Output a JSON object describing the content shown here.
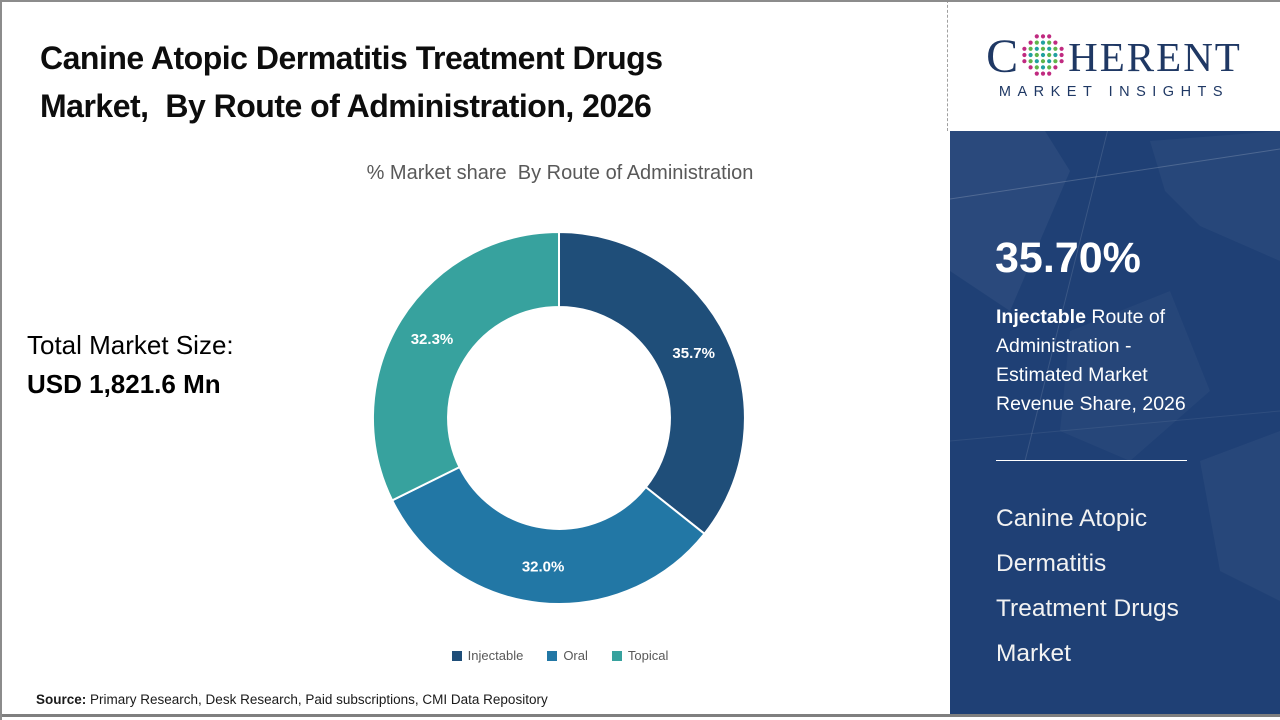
{
  "header": {
    "title_line1": "Canine Atopic Dermatitis Treatment Drugs",
    "title_line2": "Market,  By Route of Administration, 2026",
    "subtitle": "% Market share  By Route of Administration"
  },
  "chart_data": {
    "type": "pie",
    "donut": true,
    "title": "% Market share  By Route of Administration",
    "categories": [
      "Injectable",
      "Oral",
      "Topical"
    ],
    "values": [
      35.7,
      32.0,
      32.3
    ],
    "labels": [
      "35.7%",
      "32.0%",
      "32.3%"
    ],
    "colors": [
      "#1f4e79",
      "#2277a5",
      "#37a29e"
    ],
    "start_angle_deg": 0,
    "direction": "clockwise",
    "inner_radius_ratio": 0.6,
    "legend_position": "bottom",
    "label_color": "#ffffff"
  },
  "left_panel": {
    "total_label": "Total Market Size:",
    "total_value": "USD 1,821.6 Mn",
    "source_label": "Source:",
    "source_text": "Primary Research, Desk Research, Paid subscriptions, CMI Data Repository"
  },
  "sidebar": {
    "logo_c": "C",
    "logo_rest": "HERENT",
    "logo_tagline": "MARKET INSIGHTS",
    "stat_value": "35.70%",
    "stat_lead": "Injectable",
    "stat_rest": "Route of Administration - Estimated Market Revenue Share, 2026",
    "panel_title": "Canine Atopic Dermatitis Treatment Drugs Market"
  },
  "colors": {
    "sidebar_bg": "#1f4075",
    "logo_navy": "#1f3864",
    "subtitle_gray": "#595959",
    "globe_teal": "#21a0a0",
    "globe_green": "#5fb54a",
    "globe_magenta": "#c02a80"
  }
}
